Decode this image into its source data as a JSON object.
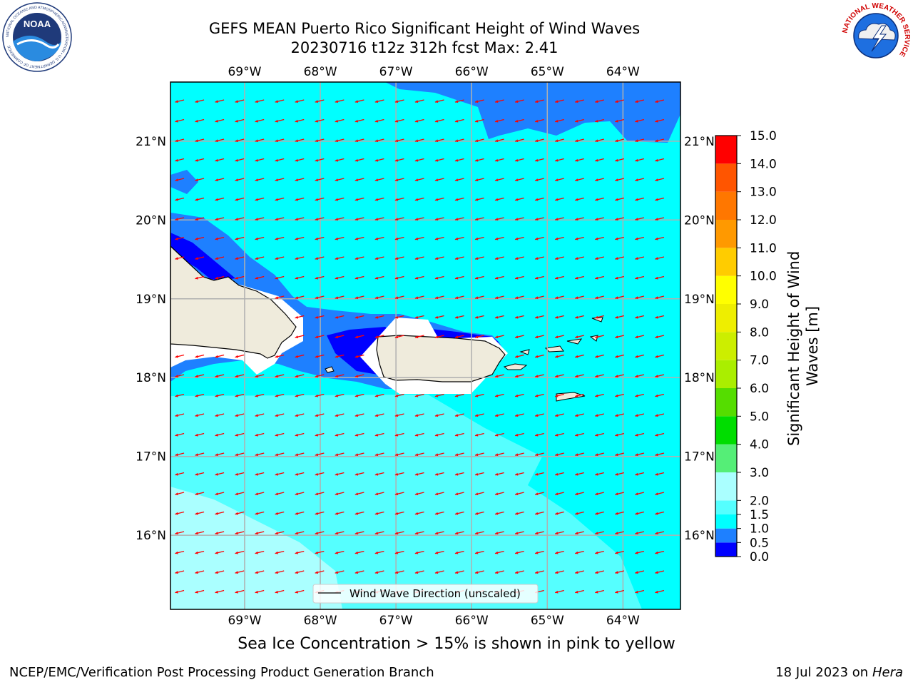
{
  "title": {
    "line1": "GEFS MEAN Puerto Rico Significant Height of Wind Waves",
    "line2": "20230716 t12z 312h fcst   Max: 2.41"
  },
  "logos": {
    "left": {
      "text": "NOAA",
      "ring_text": "NATIONAL OCEANIC AND ATMOSPHERIC ADMINISTRATION • U.S. DEPARTMENT OF COMMERCE"
    },
    "right": {
      "ring_text": "NATIONAL WEATHER SERVICE"
    }
  },
  "map": {
    "lon_labels": [
      "69°W",
      "68°W",
      "67°W",
      "66°W",
      "65°W",
      "64°W"
    ],
    "lat_labels": [
      "21°N",
      "20°N",
      "19°N",
      "18°N",
      "17°N",
      "16°N"
    ],
    "lon_range": [
      -69.98,
      -63.24
    ],
    "lat_range": [
      15.06,
      21.75
    ],
    "arrow_color": "#ff0000",
    "land_color": "#efebdc",
    "legend_label": "Wind Wave Direction (unscaled)"
  },
  "colorbar": {
    "label": "Significant Height of Wind Waves [m]",
    "levels": [
      "0.0",
      "0.5",
      "1.0",
      "1.5",
      "2.0",
      "3.0",
      "4.0",
      "5.0",
      "6.0",
      "7.0",
      "8.0",
      "9.0",
      "10.0",
      "11.0",
      "12.0",
      "13.0",
      "14.0",
      "15.0"
    ],
    "colors": [
      "#0000ff",
      "#1e80ff",
      "#00ffff",
      "#55ffff",
      "#aaffff",
      "#55ee77",
      "#00dd00",
      "#55dd00",
      "#aaee00",
      "#ccee00",
      "#eeee00",
      "#ffff00",
      "#ffcc00",
      "#ff9900",
      "#ff7700",
      "#ff5500",
      "#ff0000"
    ]
  },
  "footer": {
    "sea_ice_note": "Sea Ice Concentration > 15% is shown in pink to yellow",
    "left": "NCEP/EMC/Verification Post Processing Product Generation Branch",
    "right_date": "18 Jul 2023 on",
    "right_host": "Hera"
  }
}
